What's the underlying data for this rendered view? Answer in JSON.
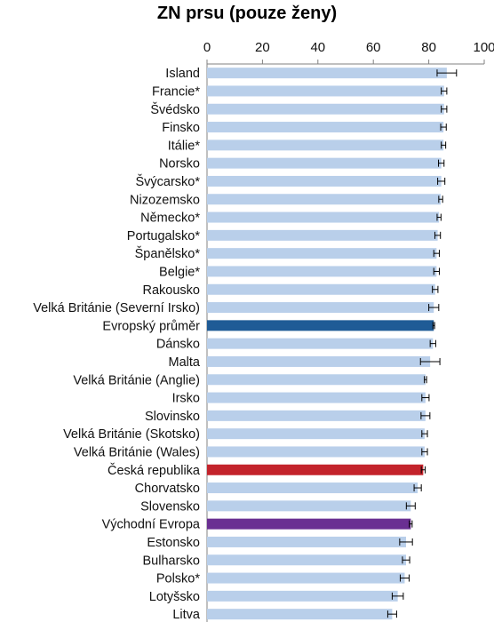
{
  "chart_data": {
    "type": "bar",
    "orientation": "horizontal",
    "title": "ZN prsu (pouze ženy)",
    "xlim": [
      0,
      100
    ],
    "x_ticks": [
      "0",
      "20",
      "40",
      "60",
      "80",
      "100"
    ],
    "grid": false,
    "colors": {
      "default": "#b9cfea",
      "European average": "#1f5b96",
      "Czech Republic": "#c3232b",
      "Eastern Europe": "#6a2f92",
      "axis": "#808080",
      "error": "#000000"
    },
    "bars": [
      {
        "label": "Island",
        "value": 86.5,
        "err": 3.5,
        "color": "default"
      },
      {
        "label": "Francie*",
        "value": 85.5,
        "err": 1.0,
        "color": "default"
      },
      {
        "label": "Švédsko",
        "value": 85.5,
        "err": 1.0,
        "color": "default"
      },
      {
        "label": "Finsko",
        "value": 85.3,
        "err": 1.0,
        "color": "default"
      },
      {
        "label": "Itálie*",
        "value": 85.3,
        "err": 0.8,
        "color": "default"
      },
      {
        "label": "Norsko",
        "value": 84.5,
        "err": 1.0,
        "color": "default"
      },
      {
        "label": "Švýcarsko*",
        "value": 84.5,
        "err": 1.3,
        "color": "default"
      },
      {
        "label": "Nizozemsko",
        "value": 84.3,
        "err": 0.7,
        "color": "default"
      },
      {
        "label": "Německo*",
        "value": 83.7,
        "err": 0.7,
        "color": "default"
      },
      {
        "label": "Portugalsko*",
        "value": 83.2,
        "err": 1.0,
        "color": "default"
      },
      {
        "label": "Španělsko*",
        "value": 82.8,
        "err": 1.0,
        "color": "default"
      },
      {
        "label": "Belgie*",
        "value": 82.8,
        "err": 1.0,
        "color": "default"
      },
      {
        "label": "Rakousko",
        "value": 82.3,
        "err": 1.0,
        "color": "default"
      },
      {
        "label": "Velká Británie (Severní Irsko)",
        "value": 81.8,
        "err": 1.8,
        "color": "default"
      },
      {
        "label": "Evropský průměr",
        "value": 81.8,
        "err": 0.3,
        "color": "European average"
      },
      {
        "label": "Dánsko",
        "value": 81.5,
        "err": 1.0,
        "color": "default"
      },
      {
        "label": "Malta",
        "value": 80.5,
        "err": 3.5,
        "color": "default"
      },
      {
        "label": "Velká Británie (Anglie)",
        "value": 78.8,
        "err": 0.4,
        "color": "default"
      },
      {
        "label": "Irsko",
        "value": 78.8,
        "err": 1.3,
        "color": "default"
      },
      {
        "label": "Slovinsko",
        "value": 78.8,
        "err": 1.6,
        "color": "default"
      },
      {
        "label": "Velká Británie (Skotsko)",
        "value": 78.5,
        "err": 1.0,
        "color": "default"
      },
      {
        "label": "Velká Británie (Wales)",
        "value": 78.5,
        "err": 1.0,
        "color": "default"
      },
      {
        "label": "Česká republika",
        "value": 78.0,
        "err": 0.7,
        "color": "Czech Republic"
      },
      {
        "label": "Chorvatsko",
        "value": 76.0,
        "err": 1.3,
        "color": "default"
      },
      {
        "label": "Slovensko",
        "value": 73.5,
        "err": 1.6,
        "color": "default"
      },
      {
        "label": "Východní Evropa",
        "value": 73.5,
        "err": 0.5,
        "color": "Eastern Europe"
      },
      {
        "label": "Estonsko",
        "value": 71.8,
        "err": 2.3,
        "color": "default"
      },
      {
        "label": "Bulharsko",
        "value": 71.8,
        "err": 1.3,
        "color": "default"
      },
      {
        "label": "Polsko*",
        "value": 71.3,
        "err": 1.6,
        "color": "default"
      },
      {
        "label": "Lotyšsko",
        "value": 68.8,
        "err": 2.0,
        "color": "default"
      },
      {
        "label": "Litva",
        "value": 66.8,
        "err": 1.6,
        "color": "default"
      }
    ]
  }
}
